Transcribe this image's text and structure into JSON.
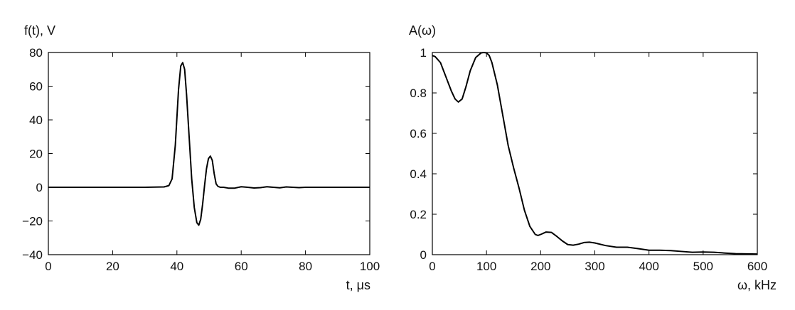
{
  "chart_data": [
    {
      "type": "line",
      "title": "",
      "xlabel": "t, μs",
      "ylabel": "f(t), V",
      "xlim": [
        0,
        100
      ],
      "ylim": [
        -40,
        80
      ],
      "xticks": [
        0,
        20,
        40,
        60,
        80,
        100
      ],
      "yticks": [
        -40,
        -20,
        0,
        20,
        40,
        60,
        80
      ],
      "xtick_labels": [
        "0",
        "20",
        "40",
        "60",
        "80",
        "100"
      ],
      "ytick_labels": [
        "−40",
        "−20",
        "0",
        "20",
        "40",
        "60",
        "80"
      ],
      "grid": false,
      "series": [
        {
          "x": [
            0,
            10,
            20,
            30,
            36,
            37.5,
            38.5,
            39.5,
            40.5,
            41.2,
            41.8,
            42.4,
            43,
            43.8,
            44.6,
            45.4,
            46.2,
            46.8,
            47.4,
            48,
            48.6,
            49.2,
            49.8,
            50.4,
            51,
            51.6,
            52.2,
            52.8,
            53.5,
            54.5,
            56,
            58,
            60,
            62,
            64,
            66,
            68,
            70,
            72,
            74,
            76,
            78,
            80,
            85,
            90,
            95,
            100
          ],
          "y": [
            0,
            0,
            0,
            0,
            0.2,
            1,
            5,
            25,
            58,
            72,
            74,
            70,
            55,
            30,
            5,
            -12,
            -21,
            -22.5,
            -19,
            -10,
            1,
            11,
            17,
            18.5,
            16,
            8,
            2,
            0.5,
            0,
            0,
            -0.5,
            -0.5,
            0.3,
            0,
            -0.4,
            -0.2,
            0.3,
            0,
            -0.3,
            0.2,
            0,
            -0.2,
            0,
            0,
            0,
            0,
            0
          ]
        }
      ]
    },
    {
      "type": "line",
      "title": "",
      "xlabel": "ω, kHz",
      "ylabel": "A(ω)",
      "xlim": [
        0,
        600
      ],
      "ylim": [
        0,
        1
      ],
      "xticks": [
        0,
        100,
        200,
        300,
        400,
        500,
        600
      ],
      "yticks": [
        0,
        0.2,
        0.4,
        0.6,
        0.8,
        1
      ],
      "xtick_labels": [
        "0",
        "100",
        "200",
        "300",
        "400",
        "500",
        "600"
      ],
      "ytick_labels": [
        "0",
        "0.2",
        "0.4",
        "0.6",
        "0.8",
        "1"
      ],
      "grid": false,
      "series": [
        {
          "x": [
            0,
            5,
            15,
            25,
            35,
            42,
            48,
            55,
            62,
            70,
            80,
            90,
            95,
            100,
            105,
            110,
            120,
            130,
            140,
            150,
            160,
            170,
            180,
            190,
            195,
            200,
            210,
            220,
            230,
            240,
            250,
            260,
            270,
            280,
            290,
            300,
            320,
            340,
            360,
            380,
            400,
            420,
            440,
            460,
            480,
            500,
            520,
            540,
            560,
            580,
            600
          ],
          "y": [
            0.985,
            0.98,
            0.95,
            0.88,
            0.81,
            0.77,
            0.755,
            0.77,
            0.83,
            0.91,
            0.975,
            0.998,
            1.0,
            0.998,
            0.985,
            0.95,
            0.84,
            0.69,
            0.54,
            0.43,
            0.33,
            0.22,
            0.14,
            0.1,
            0.095,
            0.1,
            0.112,
            0.11,
            0.09,
            0.068,
            0.05,
            0.047,
            0.052,
            0.06,
            0.062,
            0.058,
            0.045,
            0.037,
            0.037,
            0.03,
            0.022,
            0.022,
            0.02,
            0.016,
            0.012,
            0.013,
            0.012,
            0.008,
            0.005,
            0.004,
            0.003
          ]
        }
      ]
    }
  ]
}
